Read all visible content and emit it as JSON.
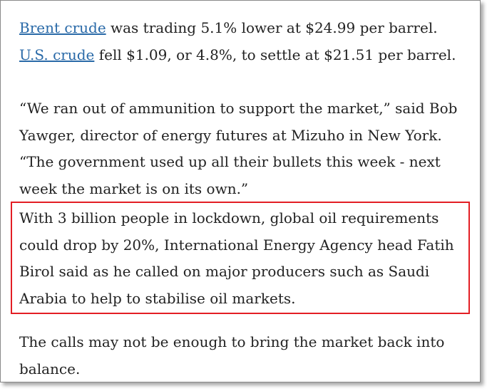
{
  "article": {
    "p1": {
      "link1": "Brent crude",
      "text1": " was trading 5.1% lower at $24.99 per barrel. ",
      "link2": "U.S. crude",
      "text2": " fell $1.09, or 4.8%, to settle at $21.51 per barrel."
    },
    "p2": "“We ran out of ammunition to support the market,” said Bob Yawger, director of energy futures at Mizuho in New York. “The government used up all their bullets this week - next week the market is on its own.”",
    "p3": "With 3 billion people in lockdown, global oil requirements could drop by 20%, International Energy Agency head Fatih Birol said as he called on major producers such as Saudi Arabia to help to stabilise oil markets.",
    "p4": "The calls may not be enough to bring the market back into balance."
  },
  "colors": {
    "link": "#2a6aa8",
    "highlight_border": "#e31e24",
    "text": "#222222"
  }
}
